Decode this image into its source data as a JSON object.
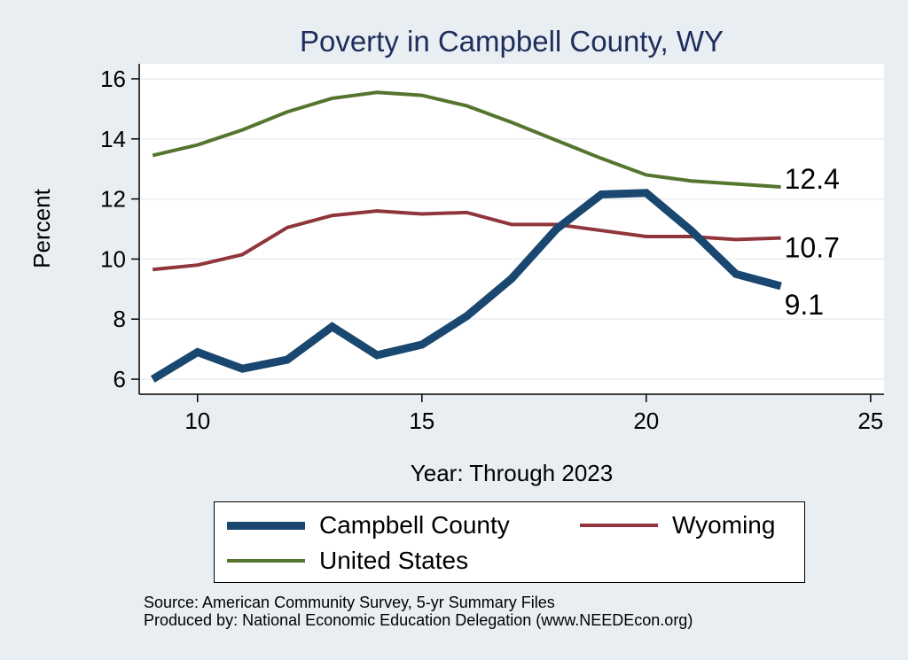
{
  "chart_data": {
    "type": "line",
    "title": "Poverty in Campbell County, WY",
    "xlabel": "Year: Through 2023",
    "ylabel": "Percent",
    "xlim": [
      8.7,
      25.3
    ],
    "ylim": [
      5.5,
      16.5
    ],
    "xticks": [
      10,
      15,
      20,
      25
    ],
    "yticks": [
      6,
      8,
      10,
      12,
      14,
      16
    ],
    "grid": true,
    "series": [
      {
        "name": "Campbell County",
        "color": "#1a476f",
        "width": 9,
        "x": [
          9,
          10,
          11,
          12,
          13,
          14,
          15,
          16,
          17,
          18,
          19,
          20,
          21,
          22,
          23
        ],
        "values": [
          6.0,
          6.9,
          6.35,
          6.65,
          7.75,
          6.8,
          7.15,
          8.1,
          9.35,
          11.0,
          12.15,
          12.2,
          10.95,
          9.5,
          9.1
        ],
        "end_label": "9.1"
      },
      {
        "name": "Wyoming",
        "color": "#90353b",
        "width": 4,
        "x": [
          9,
          10,
          11,
          12,
          13,
          14,
          15,
          16,
          17,
          18,
          19,
          20,
          21,
          22,
          23
        ],
        "values": [
          9.65,
          9.8,
          10.15,
          11.05,
          11.45,
          11.6,
          11.5,
          11.55,
          11.15,
          11.15,
          10.95,
          10.75,
          10.75,
          10.65,
          10.7
        ],
        "end_label": "10.7"
      },
      {
        "name": "United States",
        "color": "#55752f",
        "width": 4,
        "x": [
          9,
          10,
          11,
          12,
          13,
          14,
          15,
          16,
          17,
          18,
          19,
          20,
          21,
          22,
          23
        ],
        "values": [
          13.45,
          13.8,
          14.3,
          14.9,
          15.35,
          15.55,
          15.45,
          15.1,
          14.55,
          13.95,
          13.35,
          12.8,
          12.6,
          12.5,
          12.4
        ],
        "end_label": "12.4"
      }
    ]
  },
  "notes": {
    "source": "Source: American Community Survey, 5-yr Summary Files",
    "produced": "Produced by: National Economic Education Delegation (www.NEEDEcon.org)"
  }
}
